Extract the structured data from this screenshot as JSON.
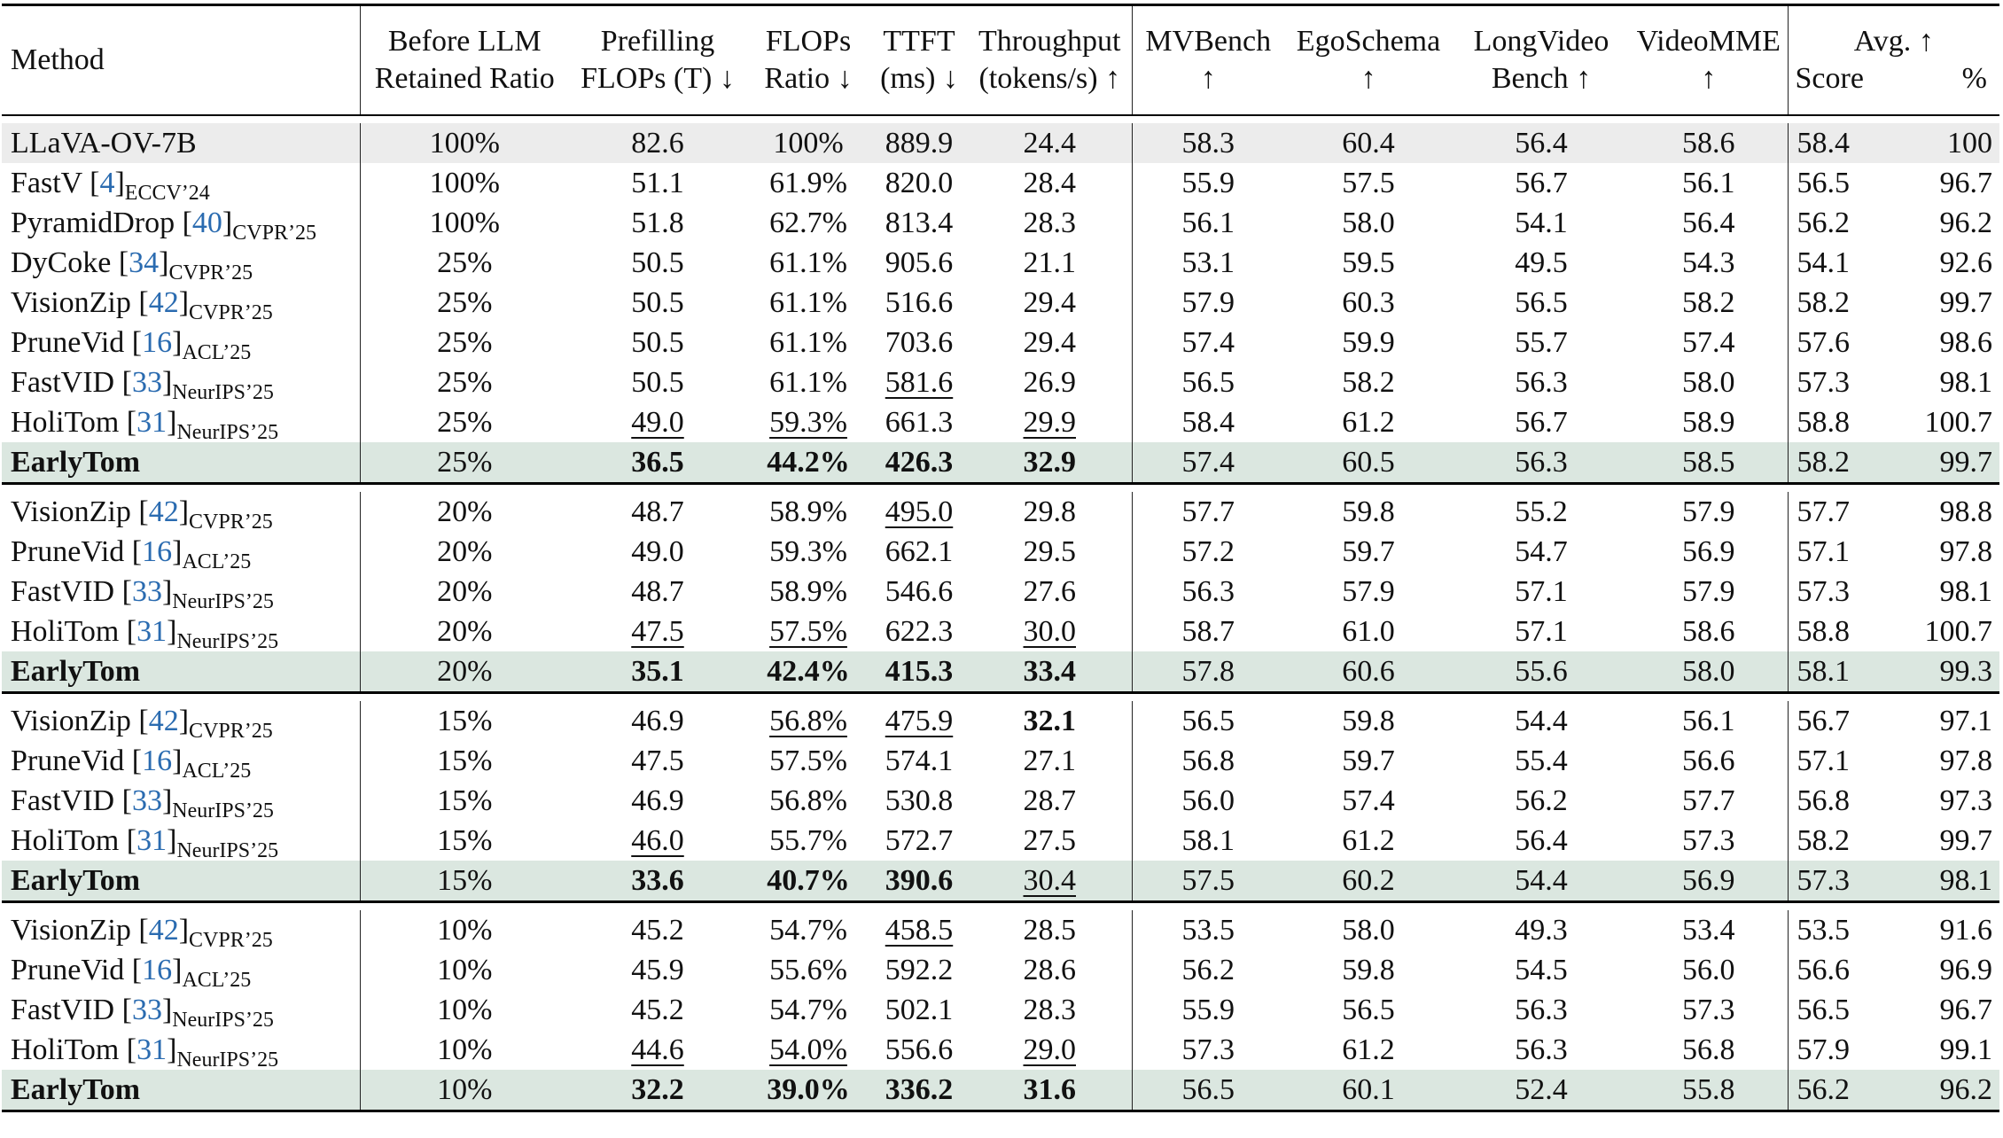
{
  "header": {
    "method": "Method",
    "retained": [
      "Before LLM",
      "Retained Ratio"
    ],
    "prefill": [
      "Prefilling",
      "FLOPs (T) ↓"
    ],
    "flops_ratio": [
      "FLOPs",
      "Ratio ↓"
    ],
    "ttft": [
      "TTFT",
      "(ms) ↓"
    ],
    "throughput": [
      "Throughput",
      "(tokens/s) ↑"
    ],
    "mvbench": [
      "MVBench",
      "↑"
    ],
    "egoschema": [
      "EgoSchema",
      "↑"
    ],
    "longvideo": [
      "LongVideo",
      "Bench ↑"
    ],
    "videomme": [
      "VideoMME",
      "↑"
    ],
    "avg": "Avg. ↑",
    "avg_score": "Score",
    "avg_pct": "%"
  },
  "blocks": [
    {
      "rows": [
        {
          "type": "base",
          "name": "LLaVA-OV-7B",
          "cells": [
            "100%",
            "82.6",
            "100%",
            "889.9",
            "24.4",
            "58.3",
            "60.4",
            "56.4",
            "58.6",
            "58.4",
            "100"
          ]
        },
        {
          "name": "FastV",
          "ref": "4",
          "venue": "ECCV’24",
          "cells": [
            "100%",
            "51.1",
            "61.9%",
            "820.0",
            "28.4",
            "55.9",
            "57.5",
            "56.7",
            "56.1",
            "56.5",
            "96.7"
          ]
        },
        {
          "name": "PyramidDrop",
          "ref": "40",
          "venue": "CVPR’25",
          "cells": [
            "100%",
            "51.8",
            "62.7%",
            "813.4",
            "28.3",
            "56.1",
            "58.0",
            "54.1",
            "56.4",
            "56.2",
            "96.2"
          ]
        },
        {
          "name": "DyCoke",
          "ref": "34",
          "venue": "CVPR’25",
          "cells": [
            "25%",
            "50.5",
            "61.1%",
            "905.6",
            "21.1",
            "53.1",
            "59.5",
            "49.5",
            "54.3",
            "54.1",
            "92.6"
          ]
        },
        {
          "name": "VisionZip",
          "ref": "42",
          "venue": "CVPR’25",
          "cells": [
            "25%",
            "50.5",
            "61.1%",
            "516.6",
            "29.4",
            "57.9",
            "60.3",
            "56.5",
            "58.2",
            "58.2",
            "99.7"
          ]
        },
        {
          "name": "PruneVid",
          "ref": "16",
          "venue": "ACL’25",
          "cells": [
            "25%",
            "50.5",
            "61.1%",
            "703.6",
            "29.4",
            "57.4",
            "59.9",
            "55.7",
            "57.4",
            "57.6",
            "98.6"
          ]
        },
        {
          "name": "FastVID",
          "ref": "33",
          "venue": "NeurIPS’25",
          "cells": [
            "25%",
            "50.5",
            "61.1%",
            "581.6",
            "26.9",
            "56.5",
            "58.2",
            "56.3",
            "58.0",
            "57.3",
            "98.1"
          ],
          "underline": [
            3
          ]
        },
        {
          "name": "HoliTom",
          "ref": "31",
          "venue": "NeurIPS’25",
          "cells": [
            "25%",
            "49.0",
            "59.3%",
            "661.3",
            "29.9",
            "58.4",
            "61.2",
            "56.7",
            "58.9",
            "58.8",
            "100.7"
          ],
          "underline": [
            1,
            2,
            4
          ]
        },
        {
          "type": "ours",
          "name": "EarlyTom",
          "cells": [
            "25%",
            "36.5",
            "44.2%",
            "426.3",
            "32.9",
            "57.4",
            "60.5",
            "56.3",
            "58.5",
            "58.2",
            "99.7"
          ]
        }
      ]
    },
    {
      "rows": [
        {
          "name": "VisionZip",
          "ref": "42",
          "venue": "CVPR’25",
          "cells": [
            "20%",
            "48.7",
            "58.9%",
            "495.0",
            "29.8",
            "57.7",
            "59.8",
            "55.2",
            "57.9",
            "57.7",
            "98.8"
          ],
          "underline": [
            3
          ]
        },
        {
          "name": "PruneVid",
          "ref": "16",
          "venue": "ACL’25",
          "cells": [
            "20%",
            "49.0",
            "59.3%",
            "662.1",
            "29.5",
            "57.2",
            "59.7",
            "54.7",
            "56.9",
            "57.1",
            "97.8"
          ]
        },
        {
          "name": "FastVID",
          "ref": "33",
          "venue": "NeurIPS’25",
          "cells": [
            "20%",
            "48.7",
            "58.9%",
            "546.6",
            "27.6",
            "56.3",
            "57.9",
            "57.1",
            "57.9",
            "57.3",
            "98.1"
          ]
        },
        {
          "name": "HoliTom",
          "ref": "31",
          "venue": "NeurIPS’25",
          "cells": [
            "20%",
            "47.5",
            "57.5%",
            "622.3",
            "30.0",
            "58.7",
            "61.0",
            "57.1",
            "58.6",
            "58.8",
            "100.7"
          ],
          "underline": [
            1,
            2,
            4
          ]
        },
        {
          "type": "ours",
          "name": "EarlyTom",
          "cells": [
            "20%",
            "35.1",
            "42.4%",
            "415.3",
            "33.4",
            "57.8",
            "60.6",
            "55.6",
            "58.0",
            "58.1",
            "99.3"
          ]
        }
      ]
    },
    {
      "rows": [
        {
          "name": "VisionZip",
          "ref": "42",
          "venue": "CVPR’25",
          "cells": [
            "15%",
            "46.9",
            "56.8%",
            "475.9",
            "32.1",
            "56.5",
            "59.8",
            "54.4",
            "56.1",
            "56.7",
            "97.1"
          ],
          "underline": [
            2,
            3
          ],
          "bold": [
            4
          ]
        },
        {
          "name": "PruneVid",
          "ref": "16",
          "venue": "ACL’25",
          "cells": [
            "15%",
            "47.5",
            "57.5%",
            "574.1",
            "27.1",
            "56.8",
            "59.7",
            "55.4",
            "56.6",
            "57.1",
            "97.8"
          ]
        },
        {
          "name": "FastVID",
          "ref": "33",
          "venue": "NeurIPS’25",
          "cells": [
            "15%",
            "46.9",
            "56.8%",
            "530.8",
            "28.7",
            "56.0",
            "57.4",
            "56.2",
            "57.7",
            "56.8",
            "97.3"
          ]
        },
        {
          "name": "HoliTom",
          "ref": "31",
          "venue": "NeurIPS’25",
          "cells": [
            "15%",
            "46.0",
            "55.7%",
            "572.7",
            "27.5",
            "58.1",
            "61.2",
            "56.4",
            "57.3",
            "58.2",
            "99.7"
          ],
          "underline": [
            1
          ]
        },
        {
          "type": "ours",
          "name": "EarlyTom",
          "cells": [
            "15%",
            "33.6",
            "40.7%",
            "390.6",
            "30.4",
            "57.5",
            "60.2",
            "54.4",
            "56.9",
            "57.3",
            "98.1"
          ],
          "underline": [
            4
          ],
          "notbold": [
            4
          ]
        }
      ]
    },
    {
      "rows": [
        {
          "name": "VisionZip",
          "ref": "42",
          "venue": "CVPR’25",
          "cells": [
            "10%",
            "45.2",
            "54.7%",
            "458.5",
            "28.5",
            "53.5",
            "58.0",
            "49.3",
            "53.4",
            "53.5",
            "91.6"
          ],
          "underline": [
            3
          ]
        },
        {
          "name": "PruneVid",
          "ref": "16",
          "venue": "ACL’25",
          "cells": [
            "10%",
            "45.9",
            "55.6%",
            "592.2",
            "28.6",
            "56.2",
            "59.8",
            "54.5",
            "56.0",
            "56.6",
            "96.9"
          ]
        },
        {
          "name": "FastVID",
          "ref": "33",
          "venue": "NeurIPS’25",
          "cells": [
            "10%",
            "45.2",
            "54.7%",
            "502.1",
            "28.3",
            "55.9",
            "56.5",
            "56.3",
            "57.3",
            "56.5",
            "96.7"
          ]
        },
        {
          "name": "HoliTom",
          "ref": "31",
          "venue": "NeurIPS’25",
          "cells": [
            "10%",
            "44.6",
            "54.0%",
            "556.6",
            "29.0",
            "57.3",
            "61.2",
            "56.3",
            "56.8",
            "57.9",
            "99.1"
          ],
          "underline": [
            1,
            2,
            4
          ]
        },
        {
          "type": "ours",
          "name": "EarlyTom",
          "cells": [
            "10%",
            "32.2",
            "39.0%",
            "336.2",
            "31.6",
            "56.5",
            "60.1",
            "52.4",
            "55.8",
            "56.2",
            "96.2"
          ]
        }
      ]
    }
  ]
}
